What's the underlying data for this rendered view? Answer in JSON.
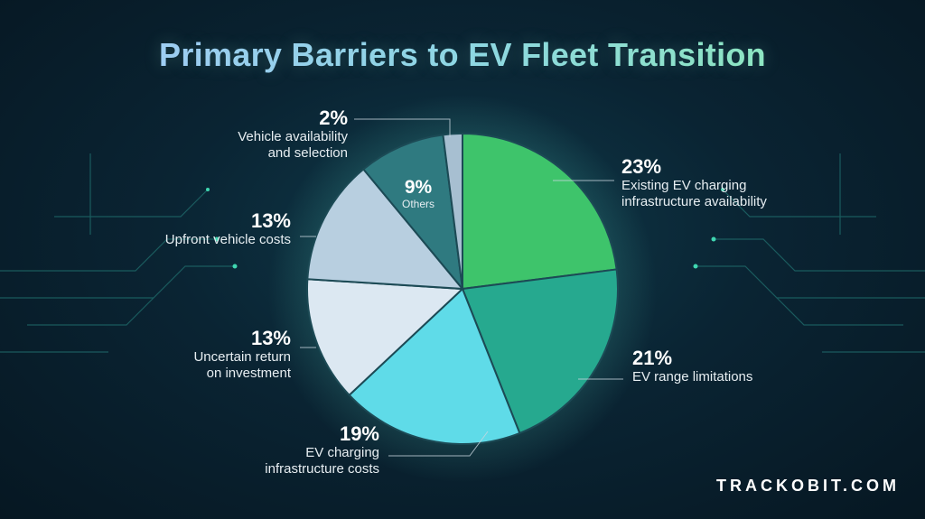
{
  "title": "Primary Barriers to EV Fleet Transition",
  "brand": "TRACKOBIT.COM",
  "chart_data": {
    "type": "pie",
    "title": "Primary Barriers to EV Fleet Transition",
    "slices": [
      {
        "label": "Existing EV charging infrastructure availability",
        "value": 23,
        "pct_text": "23%",
        "color": "#3ec46b"
      },
      {
        "label": "EV range limitations",
        "value": 21,
        "pct_text": "21%",
        "color": "#26a98f"
      },
      {
        "label": "EV charging infrastructure costs",
        "value": 19,
        "pct_text": "19%",
        "color": "#5fdbe8"
      },
      {
        "label": "Uncertain return on investment",
        "value": 13,
        "pct_text": "13%",
        "color": "#dce8f2"
      },
      {
        "label": "Upfront vehicle costs",
        "value": 13,
        "pct_text": "13%",
        "color": "#b8cfe0"
      },
      {
        "label": "Others",
        "value": 9,
        "pct_text": "9%",
        "color": "#2f7a80"
      },
      {
        "label": "Vehicle availability and selection",
        "value": 2,
        "pct_text": "2%",
        "color": "#a7bfd1"
      }
    ]
  },
  "labels": {
    "s0": {
      "pct": "23%",
      "line1": "Existing EV charging",
      "line2": "infrastructure availability"
    },
    "s1": {
      "pct": "21%",
      "line1": "EV range limitations"
    },
    "s2": {
      "pct": "19%",
      "line1": "EV charging",
      "line2": "infrastructure costs"
    },
    "s3": {
      "pct": "13%",
      "line1": "Uncertain return",
      "line2": "on investment"
    },
    "s4": {
      "pct": "13%",
      "line1": "Upfront vehicle costs"
    },
    "s5": {
      "pct": "9%",
      "line1": "Others"
    },
    "s6": {
      "pct": "2%",
      "line1": "Vehicle availability",
      "line2": "and selection"
    }
  }
}
